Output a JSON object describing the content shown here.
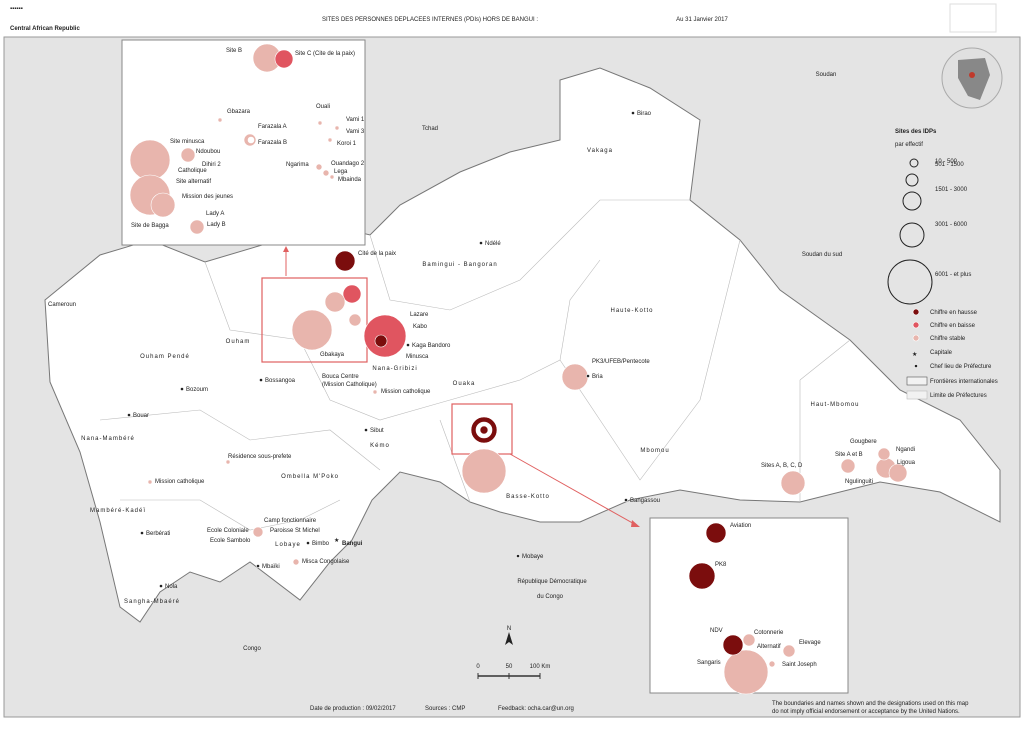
{
  "header": {
    "title": "SITES DES PERSONNES DEPLACEES INTERNES (PDIs) HORS DE BANGUI :",
    "date": "Au 31 Janvier 2017",
    "logo_text": "Central African Republic"
  },
  "countries": [
    "Tchad",
    "Soudan",
    "Soudan du sud",
    "Cameroun",
    "République Démocratique",
    "du Congo",
    "Congo"
  ],
  "prefectures": [
    "Vakaga",
    "Bamingui - Bangoran",
    "Haute-Kotto",
    "Haut-Mbomou",
    "Mbomou",
    "Basse-Kotto",
    "Ouaka",
    "Nana-Gribizi",
    "Kémo",
    "Ouham",
    "Ouham Pendé",
    "Nana-Mambéré",
    "Mambéré-Kadéï",
    "Sangha-Mbaéré",
    "Lobaye",
    "Ombella M'Poko"
  ],
  "towns": [
    "Birao",
    "Ndélé",
    "Bria",
    "Kaga Bandoro",
    "Bossangoa",
    "Bozoum",
    "Bouar",
    "Sibut",
    "Berbérati",
    "Nola",
    "Mbaïki",
    "Bimbo",
    "Bangui",
    "Mobaye",
    "Bangassou"
  ],
  "sites": [
    "Cité de la paix",
    "Lazare",
    "Kabo",
    "Minusca",
    "Gbakaya",
    "Bouca Centre",
    "(Mission Catholique)",
    "Mission catholique",
    "PK3/UFEB/Pentecote",
    "Résidence sous-prefete",
    "Mission catholique",
    "Camp fonctionnaire",
    "Paroisse St Michel",
    "Ecole Coloniale",
    "Ecole Sambolo",
    "Misca Congolaise",
    "Sites A, B, C, D",
    "Site A et B",
    "Gougbere",
    "Ngandi",
    "Ligoua",
    "Ngulinguiti"
  ],
  "inset_north": [
    "Site B",
    "Site C (Cite de la paix)",
    "Gbazara",
    "Ouali",
    "Farazala A",
    "Farazala B",
    "Vami 1",
    "Vami 3",
    "Koroi 1",
    "Ngarima",
    "Ouandago 2",
    "Lega",
    "Mbainda",
    "Site minusca",
    "Ndoubou",
    "Dihiri 2",
    "Catholique",
    "Site alternatif",
    "Mission des jeunes",
    "Lady A",
    "Lady B",
    "Site de Bagga"
  ],
  "inset_east": [
    "Aviation",
    "PK8",
    "NDV",
    "Cotonnerie",
    "Alternatif",
    "Elevage",
    "Sangaris",
    "Saint Joseph"
  ],
  "legend": {
    "title": "Sites des IDPs",
    "subtitle": "par effectif",
    "classes": [
      "10 - 500",
      "501 - 1500",
      "1501 - 3000",
      "3001 - 6000",
      "6001 - et plus"
    ],
    "symbols": [
      "Chiffre en hausse",
      "Chiffre en baisse",
      "Chiffre stable",
      "Capitale",
      "Chef lieu de Préfecture",
      "Frontières internationales",
      "Limite de Préfectures"
    ]
  },
  "scale": {
    "labels": [
      "0",
      "50",
      "100 Km"
    ],
    "north": "N"
  },
  "footer": {
    "date": "Date de production : 09/02/2017",
    "source": "Sources : CMP",
    "feedback": "Feedback: ocha.car@un.org",
    "disclaimer": [
      "The boundaries and names shown and the designations used on this map",
      "do not imply official endorsement or acceptance by the United Nations."
    ]
  }
}
